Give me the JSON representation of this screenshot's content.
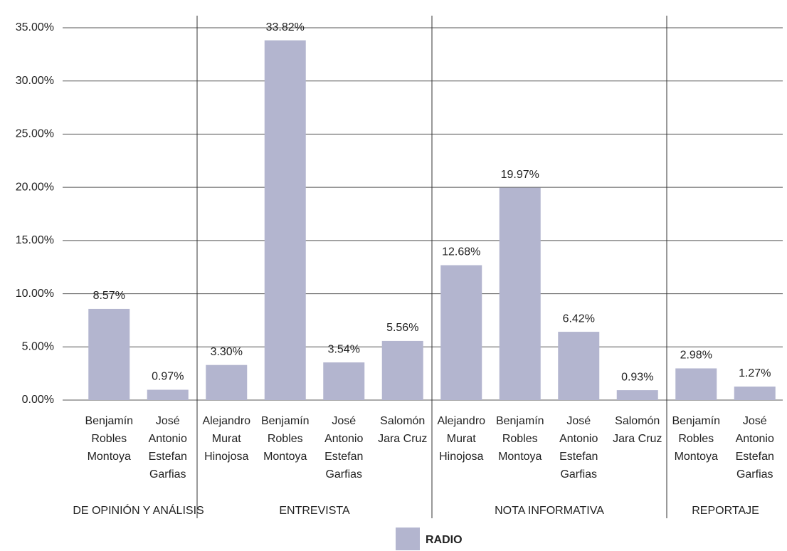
{
  "chart_data": {
    "type": "bar",
    "series": [
      {
        "name": "RADIO",
        "color": "#b3b5cf",
        "values": [
          8.57,
          0.97,
          3.3,
          33.82,
          3.54,
          5.56,
          12.68,
          19.97,
          6.42,
          0.93,
          2.98,
          1.27
        ],
        "value_labels": [
          "8.57%",
          "0.97%",
          "3.30%",
          "33.82%",
          "3.54%",
          "5.56%",
          "12.68%",
          "19.97%",
          "6.42%",
          "0.93%",
          "2.98%",
          "1.27%"
        ]
      }
    ],
    "groups": [
      {
        "label": "DE OPINIÓN Y ANÁLISIS",
        "categories": [
          [
            "Benjamín",
            "Robles",
            "Montoya"
          ],
          [
            "José",
            "Antonio",
            "Estefan",
            "Garfias"
          ]
        ]
      },
      {
        "label": "ENTREVISTA",
        "categories": [
          [
            "Alejandro",
            "Murat",
            "Hinojosa"
          ],
          [
            "Benjamín",
            "Robles",
            "Montoya"
          ],
          [
            "José",
            "Antonio",
            "Estefan",
            "Garfias"
          ],
          [
            "Salomón",
            "Jara Cruz"
          ]
        ]
      },
      {
        "label": "NOTA INFORMATIVA",
        "categories": [
          [
            "Alejandro",
            "Murat",
            "Hinojosa"
          ],
          [
            "Benjamín",
            "Robles",
            "Montoya"
          ],
          [
            "José",
            "Antonio",
            "Estefan",
            "Garfias"
          ],
          [
            "Salomón",
            "Jara Cruz"
          ]
        ]
      },
      {
        "label": "REPORTAJE",
        "categories": [
          [
            "Benjamín",
            "Robles",
            "Montoya"
          ],
          [
            "José",
            "Antonio",
            "Estefan",
            "Garfias"
          ]
        ]
      }
    ],
    "ylim": [
      0,
      35
    ],
    "yticks": [
      {
        "value": 0,
        "label": "0.00%"
      },
      {
        "value": 5,
        "label": "5.00%"
      },
      {
        "value": 10,
        "label": "10.00%"
      },
      {
        "value": 15,
        "label": "15.00%"
      },
      {
        "value": 20,
        "label": "20.00%"
      },
      {
        "value": 25,
        "label": "25.00%"
      },
      {
        "value": 30,
        "label": "30.00%"
      },
      {
        "value": 35,
        "label": "35.00%"
      }
    ],
    "grid": true,
    "legend": "bottom",
    "group_label_color": "#8b2a2e"
  }
}
